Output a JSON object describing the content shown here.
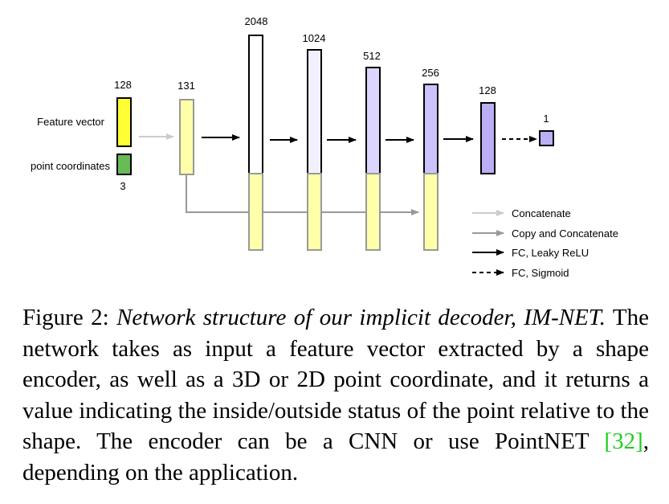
{
  "diagram": {
    "inputs": {
      "feature_vector": {
        "label": "Feature vector",
        "size": "128",
        "color": "#ffff33"
      },
      "point_coordinates": {
        "label": "point coordinates",
        "size": "3",
        "color": "#66bb55"
      }
    },
    "concat_layer": {
      "size": "131",
      "color": "#ffffaa"
    },
    "fc_layers": [
      {
        "size": "2048",
        "color": "#ffffff"
      },
      {
        "size": "1024",
        "color": "#f2f0ff"
      },
      {
        "size": "512",
        "color": "#dcd6ff"
      },
      {
        "size": "256",
        "color": "#ccc2ff"
      },
      {
        "size": "128",
        "color": "#bcaef5"
      }
    ],
    "output": {
      "size": "1",
      "color": "#bcaef5"
    },
    "copy_color": "#ffffaa",
    "legend": [
      {
        "style": "light-gray",
        "label": "Concatenate"
      },
      {
        "style": "gray",
        "label": "Copy and Concatenate"
      },
      {
        "style": "black",
        "label": "FC, Leaky ReLU"
      },
      {
        "style": "dashed",
        "label": "FC, Sigmoid"
      }
    ]
  },
  "caption": {
    "prefix": "Figure 2: ",
    "italic_title": "Network structure of our implicit decoder, IM-NET.",
    "body": " The network takes as input a feature vector extracted by a shape encoder, as well as a 3D or 2D point coordinate, and it returns a value indicating the inside/outside status of the point relative to the shape. The encoder can be a CNN or use PointNET ",
    "cite": "[32]",
    "suffix": ", depending on the application."
  }
}
